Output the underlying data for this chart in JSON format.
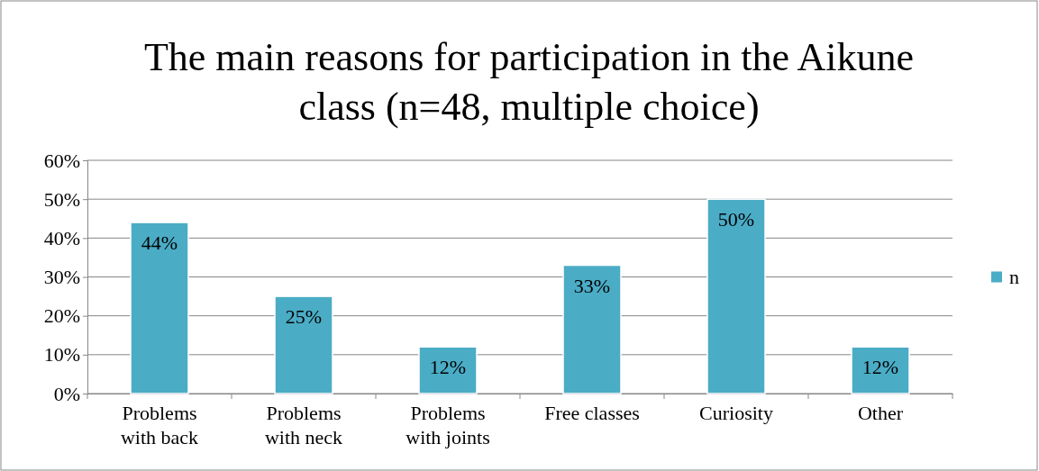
{
  "chart_data": {
    "type": "bar",
    "title": "The main reasons for participation in the Aikune class (n=48, multiple choice)",
    "categories": [
      "Problems with back",
      "Problems with neck",
      "Problems with joints",
      "Free classes",
      "Curiosity",
      "Other"
    ],
    "series": [
      {
        "name": "n",
        "color": "#4bacc6",
        "values": [
          44,
          25,
          12,
          33,
          50,
          12
        ],
        "value_labels": [
          "44%",
          "25%",
          "12%",
          "33%",
          "50%",
          "12%"
        ]
      }
    ],
    "ylim": [
      0,
      60
    ],
    "yticks": [
      {
        "value": 0,
        "label": "0%"
      },
      {
        "value": 10,
        "label": "10%"
      },
      {
        "value": 20,
        "label": "20%"
      },
      {
        "value": 30,
        "label": "30%"
      },
      {
        "value": 40,
        "label": "40%"
      },
      {
        "value": 50,
        "label": "50%"
      },
      {
        "value": 60,
        "label": "60%"
      }
    ],
    "grid": "y",
    "legend": "right"
  }
}
